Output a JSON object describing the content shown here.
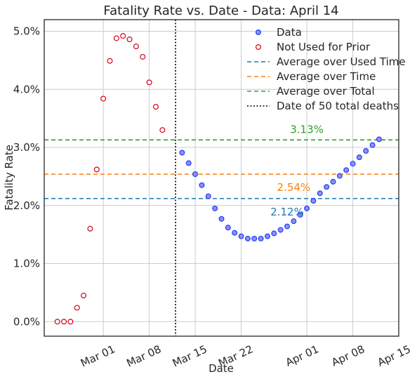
{
  "chart_data": {
    "type": "scatter",
    "title": "Fatality Rate vs. Date - Data: April 14",
    "xlabel": "Date",
    "ylabel": "Fatality Rate",
    "xlim": [
      "2020-02-21",
      "2020-04-15"
    ],
    "ylim": [
      -0.25,
      5.2
    ],
    "grid": true,
    "legend_position": "top-right",
    "x_ticks": [
      {
        "date": "2020-03-01",
        "label": "Mar 01"
      },
      {
        "date": "2020-03-08",
        "label": "Mar 08"
      },
      {
        "date": "2020-03-15",
        "label": "Mar 15"
      },
      {
        "date": "2020-03-22",
        "label": "Mar 22"
      },
      {
        "date": "2020-04-01",
        "label": "Apr 01"
      },
      {
        "date": "2020-04-08",
        "label": "Apr 08"
      },
      {
        "date": "2020-04-15",
        "label": "Apr 15"
      }
    ],
    "y_ticks": [
      {
        "value": 0,
        "label": "0.0%"
      },
      {
        "value": 1,
        "label": "1.0%"
      },
      {
        "value": 2,
        "label": "2.0%"
      },
      {
        "value": 3,
        "label": "3.0%"
      },
      {
        "value": 4,
        "label": "4.0%"
      },
      {
        "value": 5,
        "label": "5.0%"
      }
    ],
    "series": [
      {
        "name": "Data",
        "color": "#1f3fff",
        "fill": "#8f8ff0",
        "points": [
          [
            "2020-03-13",
            2.91
          ],
          [
            "2020-03-14",
            2.73
          ],
          [
            "2020-03-15",
            2.54
          ],
          [
            "2020-03-16",
            2.35
          ],
          [
            "2020-03-17",
            2.16
          ],
          [
            "2020-03-18",
            1.95
          ],
          [
            "2020-03-19",
            1.77
          ],
          [
            "2020-03-20",
            1.62
          ],
          [
            "2020-03-21",
            1.53
          ],
          [
            "2020-03-22",
            1.47
          ],
          [
            "2020-03-23",
            1.43
          ],
          [
            "2020-03-24",
            1.43
          ],
          [
            "2020-03-25",
            1.43
          ],
          [
            "2020-03-26",
            1.47
          ],
          [
            "2020-03-27",
            1.52
          ],
          [
            "2020-03-28",
            1.58
          ],
          [
            "2020-03-29",
            1.64
          ],
          [
            "2020-03-30",
            1.73
          ],
          [
            "2020-03-31",
            1.84
          ],
          [
            "2020-04-01",
            1.95
          ],
          [
            "2020-04-02",
            2.08
          ],
          [
            "2020-04-03",
            2.21
          ],
          [
            "2020-04-04",
            2.32
          ],
          [
            "2020-04-05",
            2.41
          ],
          [
            "2020-04-06",
            2.51
          ],
          [
            "2020-04-07",
            2.61
          ],
          [
            "2020-04-08",
            2.72
          ],
          [
            "2020-04-09",
            2.83
          ],
          [
            "2020-04-10",
            2.94
          ],
          [
            "2020-04-11",
            3.04
          ],
          [
            "2020-04-12",
            3.14
          ]
        ]
      },
      {
        "name": "Not Used for Prior",
        "color": "#d0021b",
        "fill": "#ffffff",
        "points": [
          [
            "2020-02-23",
            0.0
          ],
          [
            "2020-02-24",
            0.0
          ],
          [
            "2020-02-25",
            0.0
          ],
          [
            "2020-02-26",
            0.24
          ],
          [
            "2020-02-27",
            0.45
          ],
          [
            "2020-02-28",
            1.6
          ],
          [
            "2020-02-29",
            2.62
          ],
          [
            "2020-03-01",
            3.84
          ],
          [
            "2020-03-02",
            4.49
          ],
          [
            "2020-03-03",
            4.88
          ],
          [
            "2020-03-04",
            4.92
          ],
          [
            "2020-03-05",
            4.86
          ],
          [
            "2020-03-06",
            4.74
          ],
          [
            "2020-03-07",
            4.56
          ],
          [
            "2020-03-08",
            4.12
          ],
          [
            "2020-03-09",
            3.7
          ],
          [
            "2020-03-10",
            3.3
          ]
        ]
      }
    ],
    "reference_lines": [
      {
        "name": "Average over Used Time",
        "value": 2.12,
        "color": "#1f77b4",
        "label": "2.12%",
        "label_date": "2020-03-29",
        "label_value": 1.89
      },
      {
        "name": "Average over Time",
        "value": 2.54,
        "color": "#ff7f0e",
        "label": "2.54%",
        "label_date": "2020-03-30",
        "label_value": 2.31
      },
      {
        "name": "Average over Total",
        "value": 3.13,
        "color": "#2ca02c",
        "label": "3.13%",
        "label_date": "2020-04-01",
        "label_value": 3.31
      }
    ],
    "vertical_line": {
      "name": "Date of 50 total deaths",
      "date": "2020-03-12",
      "color": "#000000"
    }
  }
}
